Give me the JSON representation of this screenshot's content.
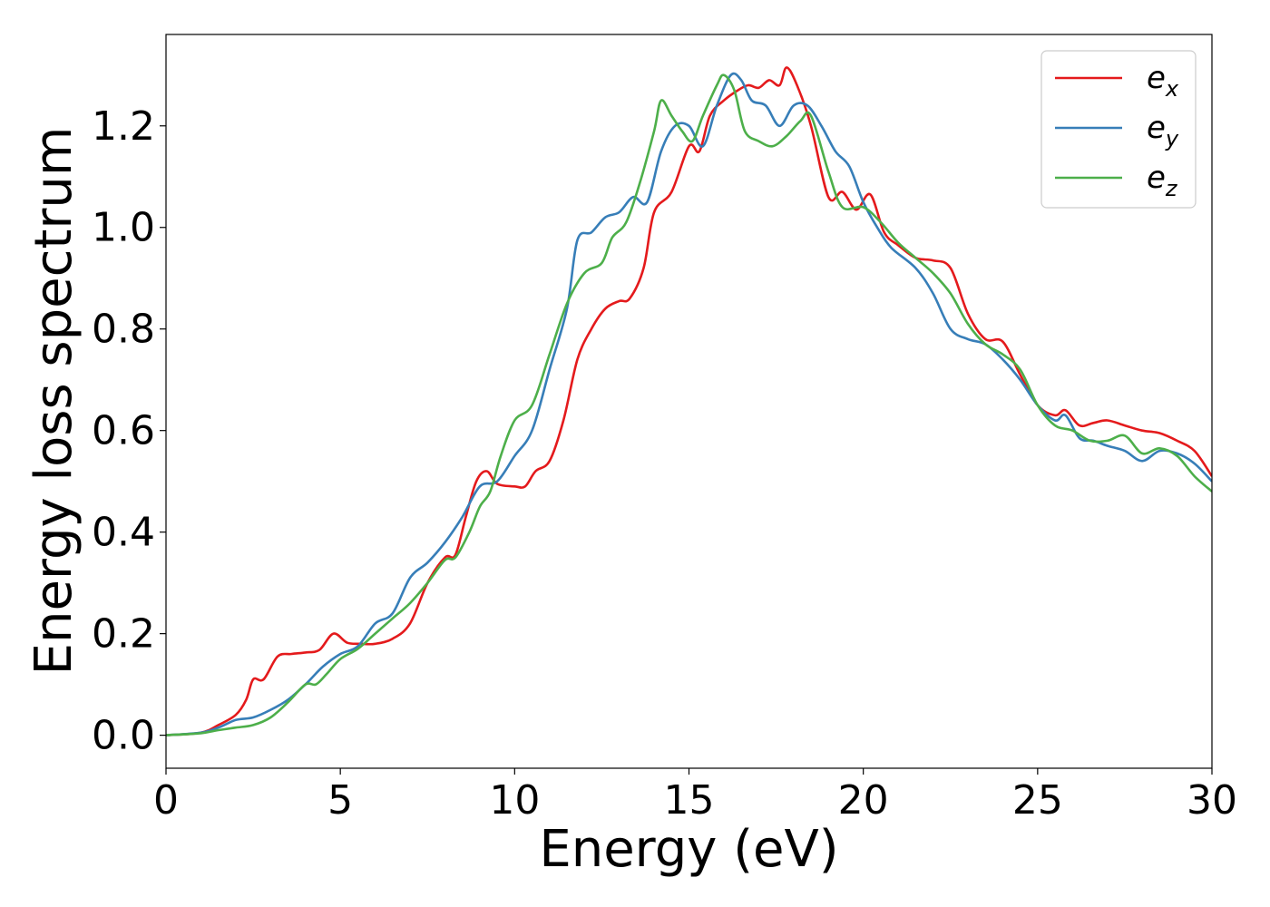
{
  "chart_data": {
    "type": "line",
    "title": "",
    "xlabel": "Energy (eV)",
    "ylabel": "Energy loss spectrum",
    "xlim": [
      0,
      30
    ],
    "ylim": [
      -0.065,
      1.38
    ],
    "xticks": [
      0,
      5,
      10,
      15,
      20,
      25,
      30
    ],
    "xtick_labels": [
      "0",
      "5",
      "10",
      "15",
      "20",
      "25",
      "30"
    ],
    "yticks": [
      0.0,
      0.2,
      0.4,
      0.6,
      0.8,
      1.0,
      1.2
    ],
    "ytick_labels": [
      "0.0",
      "0.2",
      "0.4",
      "0.6",
      "0.8",
      "1.0",
      "1.2"
    ],
    "grid": false,
    "legend_position": "top-right",
    "series": [
      {
        "name": "e_x",
        "legend_base": "e",
        "legend_sub": "x",
        "color": "#e41a1c",
        "points": [
          [
            0,
            0
          ],
          [
            1,
            0.005
          ],
          [
            1.5,
            0.02
          ],
          [
            2,
            0.04
          ],
          [
            2.3,
            0.07
          ],
          [
            2.5,
            0.11
          ],
          [
            2.8,
            0.11
          ],
          [
            3.2,
            0.155
          ],
          [
            3.6,
            0.16
          ],
          [
            4,
            0.163
          ],
          [
            4.4,
            0.168
          ],
          [
            4.8,
            0.2
          ],
          [
            5.2,
            0.182
          ],
          [
            5.6,
            0.18
          ],
          [
            6,
            0.18
          ],
          [
            6.5,
            0.19
          ],
          [
            7,
            0.22
          ],
          [
            7.5,
            0.3
          ],
          [
            8,
            0.35
          ],
          [
            8.3,
            0.355
          ],
          [
            8.6,
            0.43
          ],
          [
            8.9,
            0.5
          ],
          [
            9.2,
            0.52
          ],
          [
            9.5,
            0.495
          ],
          [
            10,
            0.49
          ],
          [
            10.3,
            0.49
          ],
          [
            10.6,
            0.52
          ],
          [
            11,
            0.54
          ],
          [
            11.4,
            0.62
          ],
          [
            11.8,
            0.74
          ],
          [
            12.2,
            0.8
          ],
          [
            12.6,
            0.84
          ],
          [
            13,
            0.855
          ],
          [
            13.3,
            0.86
          ],
          [
            13.7,
            0.92
          ],
          [
            14,
            1.03
          ],
          [
            14.5,
            1.07
          ],
          [
            15,
            1.16
          ],
          [
            15.3,
            1.15
          ],
          [
            15.6,
            1.22
          ],
          [
            16,
            1.25
          ],
          [
            16.4,
            1.27
          ],
          [
            16.7,
            1.28
          ],
          [
            17,
            1.275
          ],
          [
            17.3,
            1.29
          ],
          [
            17.6,
            1.28
          ],
          [
            17.8,
            1.315
          ],
          [
            18.1,
            1.28
          ],
          [
            18.5,
            1.2
          ],
          [
            19,
            1.06
          ],
          [
            19.4,
            1.07
          ],
          [
            19.8,
            1.035
          ],
          [
            20.2,
            1.065
          ],
          [
            20.6,
            0.99
          ],
          [
            21,
            0.965
          ],
          [
            21.5,
            0.94
          ],
          [
            22,
            0.935
          ],
          [
            22.5,
            0.92
          ],
          [
            23,
            0.83
          ],
          [
            23.5,
            0.78
          ],
          [
            24,
            0.775
          ],
          [
            24.5,
            0.71
          ],
          [
            25,
            0.65
          ],
          [
            25.5,
            0.63
          ],
          [
            25.8,
            0.64
          ],
          [
            26.2,
            0.61
          ],
          [
            26.6,
            0.615
          ],
          [
            27,
            0.62
          ],
          [
            27.5,
            0.61
          ],
          [
            28,
            0.6
          ],
          [
            28.5,
            0.595
          ],
          [
            29,
            0.58
          ],
          [
            29.5,
            0.56
          ],
          [
            30,
            0.51
          ]
        ]
      },
      {
        "name": "e_y",
        "legend_base": "e",
        "legend_sub": "y",
        "color": "#377eb8",
        "points": [
          [
            0,
            0
          ],
          [
            1,
            0.005
          ],
          [
            1.5,
            0.015
          ],
          [
            2,
            0.03
          ],
          [
            2.5,
            0.035
          ],
          [
            3,
            0.05
          ],
          [
            3.5,
            0.07
          ],
          [
            4,
            0.1
          ],
          [
            4.5,
            0.135
          ],
          [
            5,
            0.16
          ],
          [
            5.5,
            0.175
          ],
          [
            6,
            0.22
          ],
          [
            6.5,
            0.24
          ],
          [
            7,
            0.31
          ],
          [
            7.5,
            0.34
          ],
          [
            8,
            0.38
          ],
          [
            8.5,
            0.43
          ],
          [
            9,
            0.49
          ],
          [
            9.5,
            0.5
          ],
          [
            10,
            0.55
          ],
          [
            10.5,
            0.6
          ],
          [
            11,
            0.72
          ],
          [
            11.5,
            0.84
          ],
          [
            11.8,
            0.975
          ],
          [
            12.2,
            0.99
          ],
          [
            12.6,
            1.02
          ],
          [
            13,
            1.03
          ],
          [
            13.4,
            1.06
          ],
          [
            13.8,
            1.05
          ],
          [
            14.2,
            1.15
          ],
          [
            14.6,
            1.2
          ],
          [
            15,
            1.2
          ],
          [
            15.4,
            1.16
          ],
          [
            15.8,
            1.24
          ],
          [
            16.2,
            1.3
          ],
          [
            16.5,
            1.29
          ],
          [
            16.8,
            1.25
          ],
          [
            17.2,
            1.24
          ],
          [
            17.6,
            1.2
          ],
          [
            18,
            1.24
          ],
          [
            18.4,
            1.24
          ],
          [
            18.8,
            1.2
          ],
          [
            19.2,
            1.15
          ],
          [
            19.6,
            1.12
          ],
          [
            20,
            1.05
          ],
          [
            20.4,
            1
          ],
          [
            20.8,
            0.96
          ],
          [
            21.5,
            0.92
          ],
          [
            22,
            0.87
          ],
          [
            22.5,
            0.8
          ],
          [
            23,
            0.78
          ],
          [
            23.5,
            0.77
          ],
          [
            24,
            0.74
          ],
          [
            24.5,
            0.7
          ],
          [
            25,
            0.65
          ],
          [
            25.5,
            0.62
          ],
          [
            25.8,
            0.63
          ],
          [
            26.2,
            0.585
          ],
          [
            26.6,
            0.58
          ],
          [
            27,
            0.57
          ],
          [
            27.5,
            0.56
          ],
          [
            28,
            0.54
          ],
          [
            28.5,
            0.56
          ],
          [
            29,
            0.555
          ],
          [
            29.5,
            0.535
          ],
          [
            30,
            0.5
          ]
        ]
      },
      {
        "name": "e_z",
        "legend_base": "e",
        "legend_sub": "z",
        "color": "#4daf4a",
        "points": [
          [
            0,
            0
          ],
          [
            1,
            0.004
          ],
          [
            1.5,
            0.01
          ],
          [
            2,
            0.015
          ],
          [
            2.5,
            0.02
          ],
          [
            3,
            0.035
          ],
          [
            3.5,
            0.065
          ],
          [
            4,
            0.1
          ],
          [
            4.3,
            0.1
          ],
          [
            4.6,
            0.12
          ],
          [
            5,
            0.15
          ],
          [
            5.5,
            0.17
          ],
          [
            6,
            0.2
          ],
          [
            6.5,
            0.23
          ],
          [
            7,
            0.26
          ],
          [
            7.5,
            0.3
          ],
          [
            8,
            0.345
          ],
          [
            8.3,
            0.35
          ],
          [
            8.7,
            0.4
          ],
          [
            9,
            0.45
          ],
          [
            9.3,
            0.48
          ],
          [
            9.6,
            0.55
          ],
          [
            10,
            0.62
          ],
          [
            10.5,
            0.65
          ],
          [
            11,
            0.75
          ],
          [
            11.5,
            0.85
          ],
          [
            12,
            0.91
          ],
          [
            12.5,
            0.93
          ],
          [
            12.8,
            0.98
          ],
          [
            13.2,
            1.01
          ],
          [
            13.6,
            1.09
          ],
          [
            14,
            1.19
          ],
          [
            14.2,
            1.25
          ],
          [
            14.5,
            1.22
          ],
          [
            14.8,
            1.19
          ],
          [
            15.1,
            1.17
          ],
          [
            15.4,
            1.22
          ],
          [
            15.8,
            1.28
          ],
          [
            16,
            1.3
          ],
          [
            16.3,
            1.27
          ],
          [
            16.6,
            1.19
          ],
          [
            17,
            1.17
          ],
          [
            17.4,
            1.16
          ],
          [
            17.8,
            1.18
          ],
          [
            18.2,
            1.21
          ],
          [
            18.5,
            1.22
          ],
          [
            19,
            1.11
          ],
          [
            19.4,
            1.04
          ],
          [
            20,
            1.04
          ],
          [
            20.5,
            1.01
          ],
          [
            21,
            0.97
          ],
          [
            21.5,
            0.94
          ],
          [
            22,
            0.91
          ],
          [
            22.5,
            0.87
          ],
          [
            23,
            0.81
          ],
          [
            23.5,
            0.77
          ],
          [
            24,
            0.75
          ],
          [
            24.5,
            0.72
          ],
          [
            25,
            0.65
          ],
          [
            25.5,
            0.61
          ],
          [
            26,
            0.6
          ],
          [
            26.5,
            0.58
          ],
          [
            27,
            0.58
          ],
          [
            27.5,
            0.59
          ],
          [
            28,
            0.555
          ],
          [
            28.5,
            0.565
          ],
          [
            29,
            0.55
          ],
          [
            29.5,
            0.51
          ],
          [
            30,
            0.48
          ]
        ]
      }
    ]
  }
}
